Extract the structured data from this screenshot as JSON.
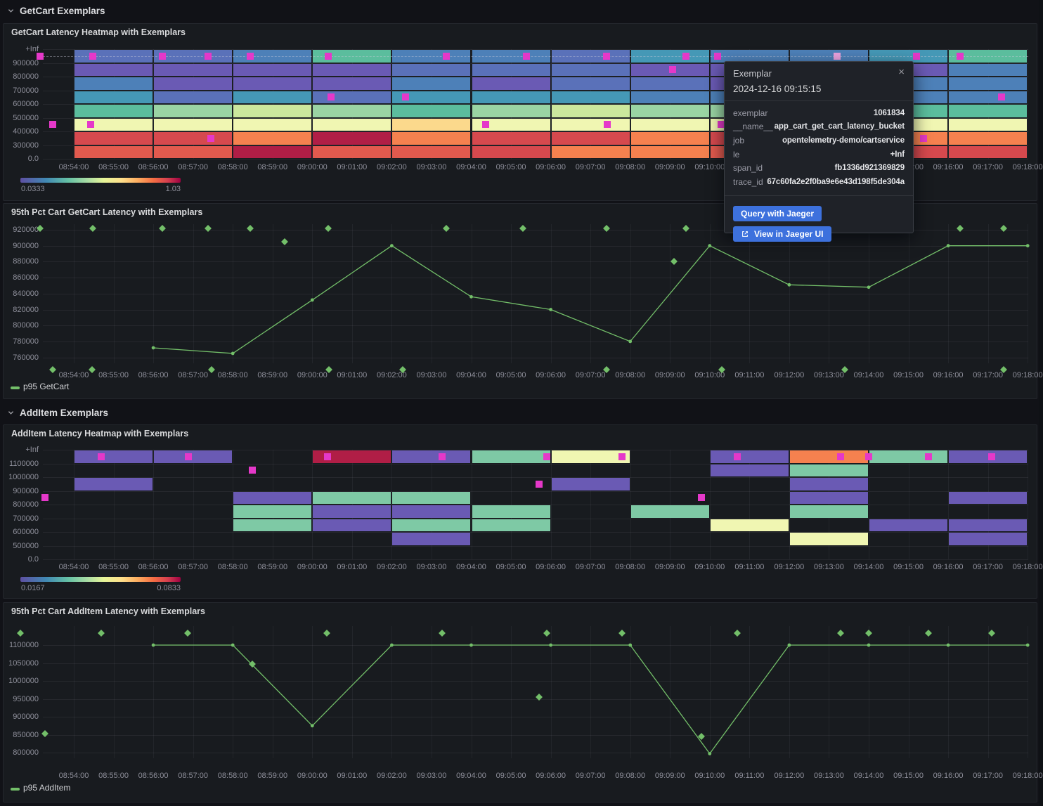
{
  "sections": [
    {
      "title": "GetCart Exemplars"
    },
    {
      "title": "AddItem Exemplars"
    }
  ],
  "tooltip": {
    "title": "Exemplar",
    "close_label": "×",
    "timestamp": "2024-12-16 09:15:15",
    "fields": [
      {
        "key": "exemplar",
        "value": "1061834"
      },
      {
        "key": "__name__",
        "value": "app_cart_get_cart_latency_bucket"
      },
      {
        "key": "job",
        "value": "opentelemetry-demo/cartservice"
      },
      {
        "key": "le",
        "value": "+Inf"
      },
      {
        "key": "span_id",
        "value": "fb1336d921369829"
      },
      {
        "key": "trace_id",
        "value": "67c60fa2e2f0ba9e6e43d198f5de304a"
      }
    ],
    "buttons": [
      {
        "label": "Query with Jaeger"
      },
      {
        "label": "View in Jaeger UI"
      }
    ]
  },
  "time_ticks": [
    "08:54:00",
    "08:55:00",
    "08:56:00",
    "08:57:00",
    "08:58:00",
    "08:59:00",
    "09:00:00",
    "09:01:00",
    "09:02:00",
    "09:03:00",
    "09:04:00",
    "09:05:00",
    "09:06:00",
    "09:07:00",
    "09:08:00",
    "09:09:00",
    "09:10:00",
    "09:11:00",
    "09:12:00",
    "09:13:00",
    "09:14:00",
    "09:15:00",
    "09:16:00",
    "09:17:00",
    "09:18:00"
  ],
  "chart_data": [
    {
      "type": "heatmap",
      "title": "GetCart Latency Heatmap with Exemplars",
      "x_start": "08:54:00",
      "x_end": "09:18:00",
      "bucket_minutes": 2,
      "y_ticks": [
        "+Inf",
        "900000",
        "800000",
        "700000",
        "600000",
        "500000",
        "400000",
        "300000",
        "0.0"
      ],
      "cells": [
        [
          "sl",
          "sl",
          "st",
          "tg",
          "st",
          "st",
          "sl",
          "tb",
          "st",
          "st",
          "tb",
          "tg"
        ],
        [
          "pu",
          "pu",
          "pu",
          "pu",
          "sl",
          "sl",
          "sl",
          "pu",
          "pu",
          "pu",
          "pu",
          "st"
        ],
        [
          "st",
          "pu",
          "pu",
          "pu",
          "st",
          "pu",
          "sl",
          "sl",
          "pu",
          "pu",
          "st",
          "st"
        ],
        [
          "tb",
          "sl",
          "tb",
          "sl",
          "tb",
          "tb",
          "tb",
          "st",
          "st",
          "st",
          "st",
          "st"
        ],
        [
          "tg",
          "lg",
          "yg",
          "lg",
          "tg",
          "lg",
          "yg",
          "lg",
          "lg",
          "lg",
          "tg",
          "tg"
        ],
        [
          "py",
          "py",
          "py",
          "py",
          "lo",
          "py",
          "py",
          "py",
          "py",
          "py",
          "py",
          "py"
        ],
        [
          "rd",
          "rd",
          "or",
          "dr",
          "or",
          "rd",
          "rd",
          "or",
          "rd",
          "rd",
          "or",
          "or"
        ],
        [
          "o2",
          "o2",
          "dr",
          "o2",
          "o2",
          "rd",
          "or",
          "or",
          "o2",
          "o2",
          "rd",
          "rd"
        ]
      ],
      "exemplar_line_row": 0,
      "colorbar": {
        "min": "0.0333",
        "max": "1.03"
      },
      "exemplars": [
        {
          "m": -0.85,
          "row": 0
        },
        {
          "m": 0.48,
          "row": 0
        },
        {
          "m": 2.23,
          "row": 0
        },
        {
          "m": 3.38,
          "row": 0
        },
        {
          "m": 4.44,
          "row": 0
        },
        {
          "m": 6.4,
          "row": 0
        },
        {
          "m": 9.38,
          "row": 0
        },
        {
          "m": 11.38,
          "row": 0
        },
        {
          "m": 13.4,
          "row": 0
        },
        {
          "m": 15.4,
          "row": 0
        },
        {
          "m": 16.2,
          "row": 0
        },
        {
          "m": 19.2,
          "row": 0,
          "light": true
        },
        {
          "m": 21.2,
          "row": 0
        },
        {
          "m": 22.3,
          "row": 0
        },
        {
          "m": 15.07,
          "row": 1
        },
        {
          "m": 6.47,
          "row": 3
        },
        {
          "m": 8.34,
          "row": 3
        },
        {
          "m": 23.35,
          "row": 3
        },
        {
          "m": -0.53,
          "row": 5
        },
        {
          "m": 0.42,
          "row": 5
        },
        {
          "m": 10.37,
          "row": 5
        },
        {
          "m": 13.42,
          "row": 5
        },
        {
          "m": 16.29,
          "row": 5
        },
        {
          "m": 3.45,
          "row": 6
        },
        {
          "m": 21.38,
          "row": 6
        }
      ]
    },
    {
      "type": "line",
      "title": "95th Pct Cart GetCart Latency with Exemplars",
      "y_ticks": [
        920000,
        900000,
        880000,
        860000,
        840000,
        820000,
        800000,
        780000,
        760000
      ],
      "series": {
        "name": "p95 GetCart",
        "points": [
          [
            2,
            772000
          ],
          [
            4,
            765000
          ],
          [
            6,
            832000
          ],
          [
            8,
            900000
          ],
          [
            10,
            836000
          ],
          [
            12,
            820000
          ],
          [
            14,
            780000
          ],
          [
            16,
            900000
          ],
          [
            18,
            851000
          ],
          [
            20,
            848000
          ],
          [
            22,
            900000
          ],
          [
            24,
            900000
          ]
        ]
      },
      "exemplars": [
        [
          -0.85,
          922000
        ],
        [
          0.48,
          922000
        ],
        [
          2.23,
          922000
        ],
        [
          3.38,
          922000
        ],
        [
          4.44,
          922000
        ],
        [
          6.4,
          922000
        ],
        [
          9.38,
          922000
        ],
        [
          11.3,
          922000
        ],
        [
          13.4,
          922000
        ],
        [
          15.4,
          922000
        ],
        [
          16.7,
          922000
        ],
        [
          22.3,
          922000
        ],
        [
          23.4,
          922000
        ],
        [
          5.3,
          905000
        ],
        [
          15.1,
          880000
        ],
        [
          -0.53,
          745000
        ],
        [
          0.46,
          745000
        ],
        [
          3.47,
          745000
        ],
        [
          6.42,
          745000
        ],
        [
          8.28,
          745000
        ],
        [
          13.4,
          745000
        ],
        [
          16.3,
          745000
        ],
        [
          19.4,
          745000
        ],
        [
          23.4,
          745000
        ]
      ]
    },
    {
      "type": "heatmap",
      "title": "AddItem Latency Heatmap with Exemplars",
      "x_start": "08:54:00",
      "x_end": "09:18:00",
      "bucket_minutes": 2,
      "y_ticks": [
        "+Inf",
        "1100000",
        "1000000",
        "900000",
        "800000",
        "700000",
        "600000",
        "500000",
        "0.0"
      ],
      "cells": [
        [
          "pu",
          "pu",
          null,
          "dr",
          "pu",
          "mg",
          "py",
          null,
          "pu",
          "or",
          "mg",
          "pu"
        ],
        [
          null,
          null,
          null,
          null,
          null,
          null,
          null,
          null,
          "pu",
          "mg",
          null,
          null
        ],
        [
          "pu",
          null,
          null,
          null,
          null,
          null,
          "pu",
          null,
          null,
          "pu",
          null,
          null
        ],
        [
          null,
          null,
          "pu",
          "mg",
          "mg",
          null,
          null,
          null,
          null,
          "pu",
          null,
          "pu"
        ],
        [
          null,
          null,
          "mg",
          "pu",
          "pu",
          "mg",
          null,
          "mg",
          null,
          "mg",
          null,
          null
        ],
        [
          null,
          null,
          "mg",
          "pu",
          "mg",
          "mg",
          null,
          null,
          "py",
          null,
          "pu",
          "pu"
        ],
        [
          null,
          null,
          null,
          null,
          "pu",
          null,
          null,
          null,
          null,
          "py",
          null,
          "pu"
        ],
        [
          null,
          null,
          null,
          null,
          null,
          null,
          null,
          null,
          null,
          null,
          null,
          null
        ]
      ],
      "exemplar_line_row": null,
      "colorbar": {
        "min": "0.0167",
        "max": "0.0833"
      },
      "exemplars": [
        {
          "m": 0.69,
          "row": 0
        },
        {
          "m": 2.88,
          "row": 0
        },
        {
          "m": 6.39,
          "row": 0
        },
        {
          "m": 9.27,
          "row": 0
        },
        {
          "m": 11.9,
          "row": 0
        },
        {
          "m": 13.8,
          "row": 0
        },
        {
          "m": 16.7,
          "row": 0
        },
        {
          "m": 19.3,
          "row": 0
        },
        {
          "m": 20.0,
          "row": 0
        },
        {
          "m": 21.5,
          "row": 0
        },
        {
          "m": 23.1,
          "row": 0
        },
        {
          "m": 4.5,
          "row": 1
        },
        {
          "m": 11.7,
          "row": 2
        },
        {
          "m": -0.73,
          "row": 3
        },
        {
          "m": 15.8,
          "row": 3
        }
      ]
    },
    {
      "type": "line",
      "title": "95th Pct Cart AddItem Latency with Exemplars",
      "y_ticks": [
        1100000,
        1050000,
        1000000,
        950000,
        900000,
        850000,
        800000
      ],
      "series": {
        "name": "p95 AddItem",
        "points": [
          [
            2,
            1100000
          ],
          [
            4,
            1100000
          ],
          [
            6,
            875000
          ],
          [
            8,
            1100000
          ],
          [
            10,
            1100000
          ],
          [
            12,
            1100000
          ],
          [
            14,
            1100000
          ],
          [
            16,
            797000
          ],
          [
            18,
            1100000
          ],
          [
            20,
            1100000
          ],
          [
            22,
            1100000
          ],
          [
            24,
            1100000
          ]
        ]
      },
      "exemplars": [
        [
          -1.35,
          1133000
        ],
        [
          0.69,
          1133000
        ],
        [
          2.87,
          1133000
        ],
        [
          6.37,
          1133000
        ],
        [
          9.27,
          1133000
        ],
        [
          11.9,
          1133000
        ],
        [
          13.8,
          1133000
        ],
        [
          16.7,
          1133000
        ],
        [
          19.3,
          1133000
        ],
        [
          20.0,
          1133000
        ],
        [
          21.5,
          1133000
        ],
        [
          23.1,
          1133000
        ],
        [
          4.5,
          1048000
        ],
        [
          -0.73,
          852000
        ],
        [
          11.7,
          955000
        ],
        [
          15.8,
          845000
        ]
      ]
    }
  ],
  "colors": {
    "line_green": "#73bf69",
    "exemplar_magenta": "#e538c9",
    "exemplar_magenta_light": "#e9a1dd",
    "button_blue": "#3d71dd",
    "panel_bg": "#181b1f",
    "page_bg": "#111217",
    "palette": {
      "pu": "#6a5ab4",
      "sl": "#5a71b9",
      "st": "#4d80b8",
      "tb": "#4598b6",
      "tg": "#5bbd9d",
      "mg": "#7ec9a5",
      "lg": "#9ad4a3",
      "yg": "#cbe79d",
      "py": "#f0f6b2",
      "lo": "#fbd98c",
      "or": "#f5814f",
      "o2": "#e25a4e",
      "rd": "#d6494e",
      "dr": "#b01e46"
    }
  }
}
